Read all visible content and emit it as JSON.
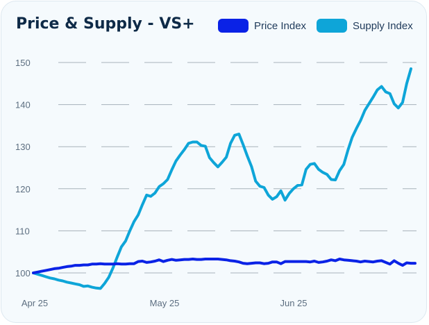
{
  "chart_data": {
    "type": "line",
    "title": "Price & Supply - VS+",
    "xlabel": "",
    "ylabel": "",
    "x_ticks": [
      "Apr 25",
      "May 25",
      "Jun 25"
    ],
    "y_ticks": [
      100,
      110,
      120,
      130,
      140,
      150
    ],
    "ylim": [
      97,
      153
    ],
    "grid": "horizontal dashed",
    "legend_position": "top-right",
    "series": [
      {
        "name": "Price Index",
        "color": "#0a22e6",
        "values": [
          100,
          100.2,
          100.4,
          100.6,
          100.8,
          101,
          101.1,
          101.3,
          101.5,
          101.6,
          101.8,
          101.8,
          101.9,
          101.9,
          102.1,
          102.1,
          102.2,
          102.1,
          102.1,
          102.1,
          102.2,
          102.1,
          102.1,
          102.2,
          102.2,
          102.7,
          102.8,
          102.5,
          102.6,
          102.8,
          103.1,
          102.7,
          103,
          103.2,
          103,
          103.1,
          103.2,
          103.2,
          103.3,
          103.2,
          103.2,
          103.3,
          103.3,
          103.3,
          103.3,
          103.2,
          103.1,
          102.9,
          102.8,
          102.6,
          102.3,
          102.2,
          102.3,
          102.4,
          102.4,
          102.2,
          102.3,
          102.6,
          102.6,
          102.2,
          102.7,
          102.7,
          102.7,
          102.7,
          102.7,
          102.7,
          102.6,
          102.8,
          102.5,
          102.6,
          102.8,
          103.1,
          102.9,
          103.3,
          103.1,
          103,
          102.9,
          102.8,
          102.6,
          102.8,
          102.7,
          102.6,
          102.8,
          102.9,
          102.5,
          102.1,
          102.9,
          102.3,
          101.8,
          102.4,
          102.3,
          102.3
        ]
      },
      {
        "name": "Supply Index",
        "color": "#0ea5d8",
        "values": [
          100,
          99.7,
          99.4,
          99.1,
          98.8,
          98.6,
          98.3,
          98.1,
          97.8,
          97.6,
          97.4,
          97.2,
          96.8,
          96.9,
          96.6,
          96.4,
          96.3,
          97.5,
          99,
          101.2,
          103.8,
          106.2,
          107.6,
          110,
          112.2,
          113.8,
          116.2,
          118.5,
          118.2,
          119,
          120.5,
          121.2,
          122.2,
          124.5,
          126.6,
          128,
          129.3,
          130.8,
          131.1,
          131.1,
          130.3,
          130.1,
          127.4,
          126.2,
          125.2,
          126.3,
          127.5,
          130.8,
          132.7,
          133,
          130.5,
          127.8,
          125.3,
          121.8,
          120.6,
          120.3,
          118.5,
          117.5,
          118.1,
          119.5,
          117.3,
          118.9,
          120,
          120.8,
          120.9,
          124.6,
          125.8,
          126,
          124.6,
          123.9,
          123.4,
          122.2,
          122.1,
          124.3,
          125.8,
          129.2,
          132.2,
          134.3,
          136.2,
          138.6,
          140.2,
          141.8,
          143.5,
          144.3,
          143,
          142.6,
          140.2,
          139.2,
          140.5,
          145,
          148.5
        ]
      }
    ]
  }
}
